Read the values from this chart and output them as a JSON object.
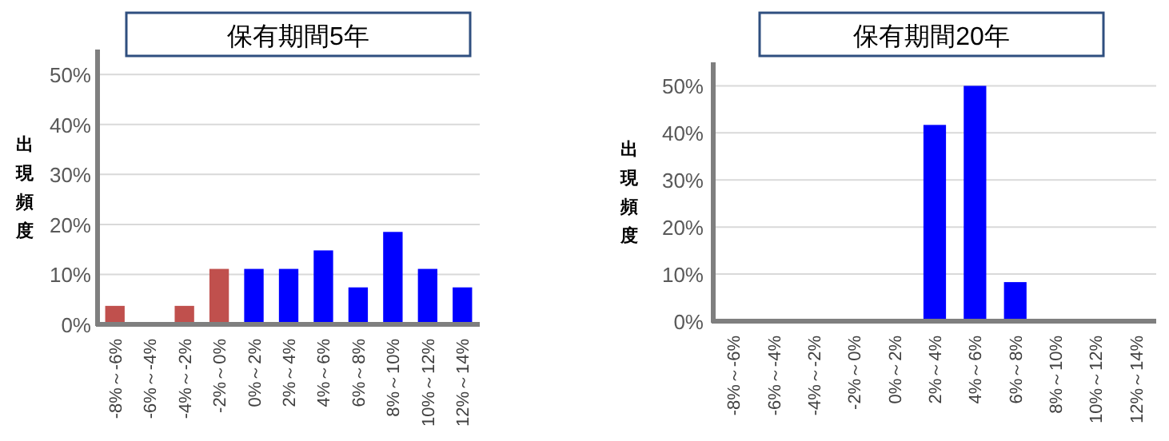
{
  "chart_data": [
    {
      "type": "bar",
      "title": "保有期間5年",
      "ylabel": "出現頻度",
      "categories": [
        "-8%～-6%",
        "-6%～-4%",
        "-4%～-2%",
        "-2%～0%",
        "0%～2%",
        "2%～4%",
        "4%～6%",
        "6%～8%",
        "8%～10%",
        "10%～12%",
        "12%～14%"
      ],
      "values": [
        3.7,
        0,
        3.7,
        11.1,
        11.1,
        11.1,
        14.8,
        7.4,
        18.5,
        11.1,
        7.4
      ],
      "colors": [
        "#c0504d",
        "#c0504d",
        "#c0504d",
        "#c0504d",
        "#0000ff",
        "#0000ff",
        "#0000ff",
        "#0000ff",
        "#0000ff",
        "#0000ff",
        "#0000ff"
      ],
      "ylim": [
        0,
        55
      ],
      "yticks": [
        {
          "value": 0,
          "label": "0%"
        },
        {
          "value": 10,
          "label": "10%"
        },
        {
          "value": 20,
          "label": "20%"
        },
        {
          "value": 30,
          "label": "30%"
        },
        {
          "value": 40,
          "label": "40%"
        },
        {
          "value": 50,
          "label": "50%"
        }
      ],
      "grid": "y"
    },
    {
      "type": "bar",
      "title": "保有期間20年",
      "ylabel": "出現頻度",
      "categories": [
        "-8%～-6%",
        "-6%～-4%",
        "-4%～-2%",
        "-2%～0%",
        "0%～2%",
        "2%～4%",
        "4%～6%",
        "6%～8%",
        "8%～10%",
        "10%～12%",
        "12%～14%"
      ],
      "values": [
        0,
        0,
        0,
        0,
        0,
        41.7,
        50,
        8.3,
        0,
        0,
        0
      ],
      "colors": [
        "#0000ff",
        "#0000ff",
        "#0000ff",
        "#0000ff",
        "#0000ff",
        "#0000ff",
        "#0000ff",
        "#0000ff",
        "#0000ff",
        "#0000ff",
        "#0000ff"
      ],
      "ylim": [
        0,
        55
      ],
      "yticks": [
        {
          "value": 0,
          "label": "0%"
        },
        {
          "value": 10,
          "label": "10%"
        },
        {
          "value": 20,
          "label": "20%"
        },
        {
          "value": 30,
          "label": "30%"
        },
        {
          "value": 40,
          "label": "40%"
        },
        {
          "value": 50,
          "label": "50%"
        }
      ],
      "grid": "y"
    }
  ]
}
